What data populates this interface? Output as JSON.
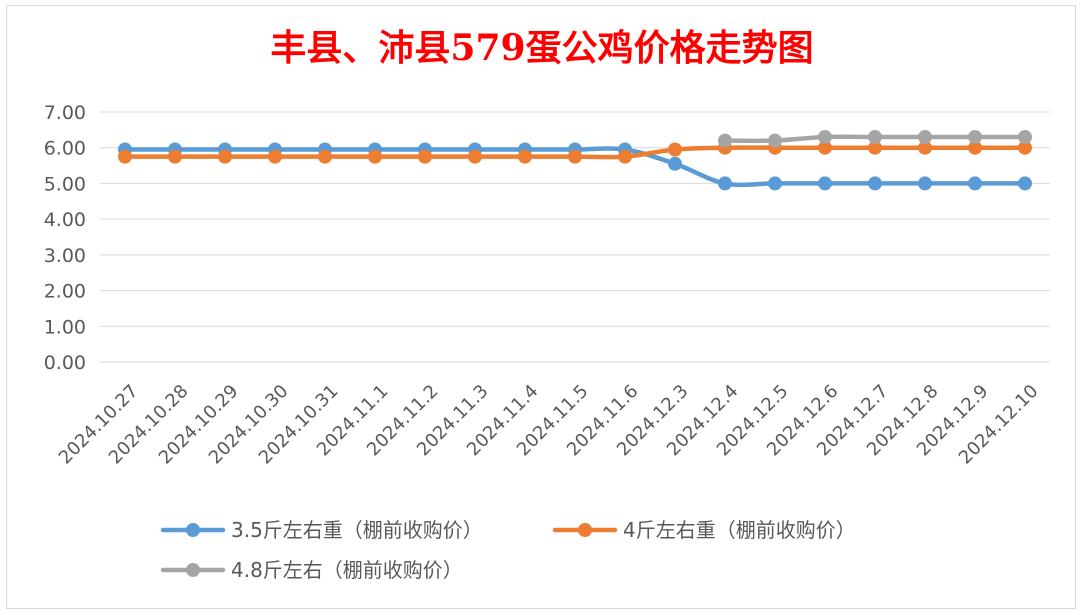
{
  "chart_data": {
    "type": "line",
    "title": "丰县、沛县579蛋公鸡价格走势图",
    "xlabel": "",
    "ylabel": "",
    "ylim": [
      0,
      7
    ],
    "yticks": [
      "0.00",
      "1.00",
      "2.00",
      "3.00",
      "4.00",
      "5.00",
      "6.00",
      "7.00"
    ],
    "grid": true,
    "legend_position": "bottom",
    "categories": [
      "2024.10.27",
      "2024.10.28",
      "2024.10.29",
      "2024.10.30",
      "2024.10.31",
      "2024.11.1",
      "2024.11.2",
      "2024.11.3",
      "2024.11.4",
      "2024.11.5",
      "2024.11.6",
      "2024.12.3",
      "2024.12.4",
      "2024.12.5",
      "2024.12.6",
      "2024.12.7",
      "2024.12.8",
      "2024.12.9",
      "2024.12.10"
    ],
    "series": [
      {
        "name": "3.5斤左右重（棚前收购价）",
        "color": "#5b9bd5",
        "values": [
          5.95,
          5.95,
          5.95,
          5.95,
          5.95,
          5.95,
          5.95,
          5.95,
          5.95,
          5.95,
          5.95,
          5.55,
          5.0,
          5.0,
          5.0,
          5.0,
          5.0,
          5.0,
          5.0
        ]
      },
      {
        "name": "4斤左右重（棚前收购价）",
        "color": "#ed7d31",
        "values": [
          5.75,
          5.75,
          5.75,
          5.75,
          5.75,
          5.75,
          5.75,
          5.75,
          5.75,
          5.75,
          5.75,
          5.95,
          6.0,
          6.0,
          6.0,
          6.0,
          6.0,
          6.0,
          6.0
        ]
      },
      {
        "name": "4.8斤左右（棚前收购价）",
        "color": "#a5a5a5",
        "values": [
          null,
          null,
          null,
          null,
          null,
          null,
          null,
          null,
          null,
          null,
          null,
          null,
          6.2,
          6.2,
          6.3,
          6.3,
          6.3,
          6.3,
          6.3
        ]
      }
    ]
  }
}
